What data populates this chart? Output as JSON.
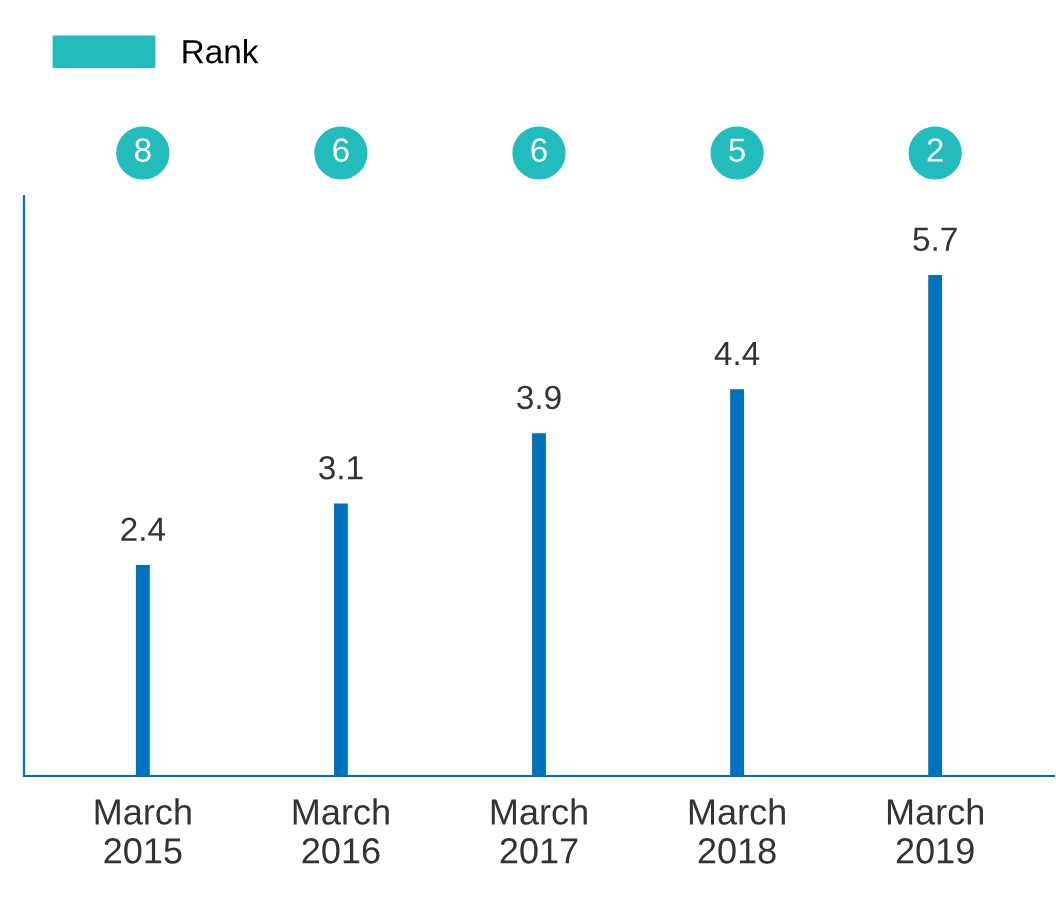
{
  "chart_data": [
    {
      "type": "other",
      "series": [
        {
          "name": "Rank",
          "color": "#22bcbc",
          "values": [
            8,
            6,
            6,
            5,
            2
          ],
          "value_labels": [
            "8",
            "6",
            "6",
            "5",
            "2"
          ]
        }
      ],
      "legend": "top left"
    },
    {
      "type": "bar",
      "categories": [
        "March\n2015",
        "March\n2016",
        "March\n2017",
        "March\n2018",
        "March\n2019"
      ],
      "series": [
        {
          "type": "bar",
          "color": "#0071bc",
          "values": [
            2.4,
            3.1,
            3.9,
            4.4,
            5.7
          ],
          "value_labels": [
            "2.4",
            "3.1",
            "3.9",
            "4.4",
            "5.7"
          ]
        }
      ],
      "ylim": [
        0,
        6.6
      ],
      "tick_labels": "x",
      "grid": false
    }
  ]
}
